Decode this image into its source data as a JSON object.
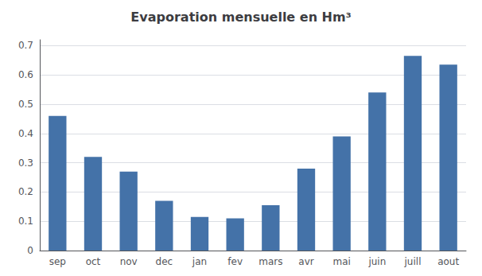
{
  "chart_data": {
    "type": "bar",
    "title": "Evaporation mensuelle en Hm³",
    "categories": [
      "sep",
      "oct",
      "nov",
      "dec",
      "jan",
      "fev",
      "mars",
      "avr",
      "mai",
      "juin",
      "juill",
      "aout"
    ],
    "values": [
      0.46,
      0.32,
      0.27,
      0.17,
      0.115,
      0.11,
      0.155,
      0.28,
      0.39,
      0.54,
      0.665,
      0.635
    ],
    "color": "#4472A8",
    "ylim": [
      0,
      0.72
    ],
    "yticks": [
      0,
      0.1,
      0.2,
      0.3,
      0.4,
      0.5,
      0.6,
      0.7
    ],
    "grid": true
  }
}
